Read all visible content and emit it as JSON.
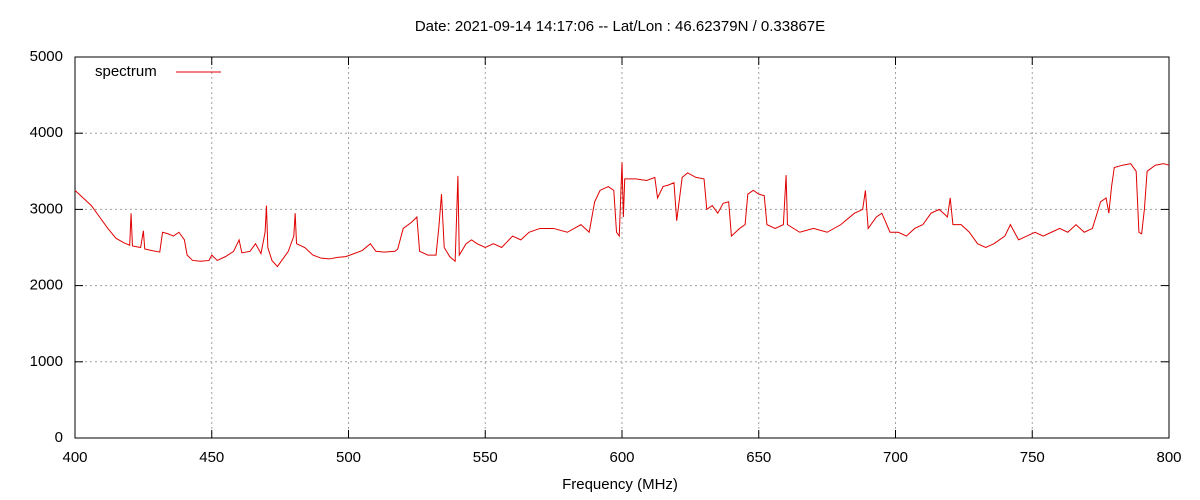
{
  "chart_data": {
    "type": "line",
    "title": "Date: 2021-09-14 14:17:06  --  Lat/Lon : 46.62379N / 0.33867E",
    "x_label": "Frequency (MHz)",
    "xlim": [
      400,
      800
    ],
    "xticks": [
      400,
      450,
      500,
      550,
      600,
      650,
      700,
      750,
      800
    ],
    "ylim": [
      0,
      5000
    ],
    "yticks": [
      0,
      1000,
      2000,
      3000,
      4000,
      5000
    ],
    "grid": true,
    "legend": "top-left",
    "x": [
      400,
      403,
      406,
      409,
      412,
      415,
      418,
      420,
      420.5,
      421,
      424,
      425,
      425.5,
      428,
      431,
      432,
      434,
      436,
      438,
      440,
      441,
      443,
      446,
      449,
      450,
      452,
      455,
      458,
      460,
      461,
      464,
      466,
      468,
      469.5,
      470,
      470.5,
      472,
      474,
      476,
      478,
      480,
      480.5,
      481,
      484,
      487,
      490,
      493,
      496,
      499,
      502,
      505,
      508,
      510,
      513,
      517,
      518,
      520,
      523,
      525,
      526,
      529,
      532,
      533,
      534,
      535,
      537,
      539,
      540,
      540.5,
      543,
      545,
      547,
      550,
      553,
      556,
      560,
      563,
      566,
      570,
      575,
      580,
      585,
      588,
      590,
      592,
      595,
      597,
      598,
      599,
      600,
      600.5,
      601,
      605,
      609,
      612,
      613,
      615,
      617,
      619,
      620,
      622,
      624,
      627,
      630,
      631,
      633,
      635,
      637,
      639,
      640,
      643,
      645,
      646,
      648,
      650,
      652,
      653,
      656,
      659,
      660,
      660.5,
      665,
      670,
      675,
      680,
      685,
      688,
      689,
      690,
      693,
      695,
      698,
      701,
      704,
      707,
      710,
      713,
      716,
      719,
      720,
      721,
      724,
      727,
      730,
      733,
      736,
      740,
      742,
      745,
      748,
      751,
      754,
      757,
      760,
      763,
      766,
      769,
      772,
      775,
      777,
      778,
      779,
      780,
      783,
      786,
      788,
      789,
      790,
      791,
      792,
      795,
      798,
      800
    ],
    "series": [
      {
        "name": "spectrum",
        "color": "#e00000",
        "values": [
          3250,
          3150,
          3050,
          2900,
          2750,
          2620,
          2560,
          2530,
          2950,
          2520,
          2500,
          2720,
          2480,
          2460,
          2440,
          2700,
          2680,
          2650,
          2700,
          2600,
          2400,
          2330,
          2320,
          2330,
          2400,
          2330,
          2380,
          2450,
          2600,
          2430,
          2450,
          2550,
          2420,
          2700,
          3050,
          2500,
          2330,
          2250,
          2350,
          2450,
          2650,
          2950,
          2550,
          2500,
          2400,
          2360,
          2350,
          2370,
          2380,
          2420,
          2460,
          2550,
          2450,
          2440,
          2450,
          2480,
          2750,
          2830,
          2900,
          2450,
          2400,
          2400,
          2750,
          3200,
          2500,
          2380,
          2320,
          3440,
          2400,
          2550,
          2600,
          2550,
          2500,
          2550,
          2500,
          2650,
          2600,
          2700,
          2750,
          2750,
          2700,
          2800,
          2700,
          3100,
          3250,
          3300,
          3250,
          2700,
          2650,
          3620,
          2900,
          3400,
          3400,
          3380,
          3420,
          3150,
          3300,
          3320,
          3350,
          2850,
          3420,
          3480,
          3420,
          3400,
          3000,
          3050,
          2950,
          3080,
          3100,
          2650,
          2750,
          2800,
          3200,
          3250,
          3200,
          3180,
          2800,
          2750,
          2800,
          3450,
          2800,
          2700,
          2750,
          2700,
          2800,
          2950,
          3000,
          3250,
          2750,
          2900,
          2950,
          2700,
          2700,
          2650,
          2750,
          2800,
          2950,
          3000,
          2900,
          3150,
          2800,
          2800,
          2700,
          2550,
          2500,
          2550,
          2650,
          2800,
          2600,
          2650,
          2700,
          2650,
          2700,
          2750,
          2700,
          2800,
          2700,
          2750,
          3100,
          3150,
          2950,
          3300,
          3550,
          3580,
          3600,
          3500,
          2700,
          2680,
          3000,
          3500,
          3580,
          3600,
          3580
        ]
      }
    ]
  }
}
